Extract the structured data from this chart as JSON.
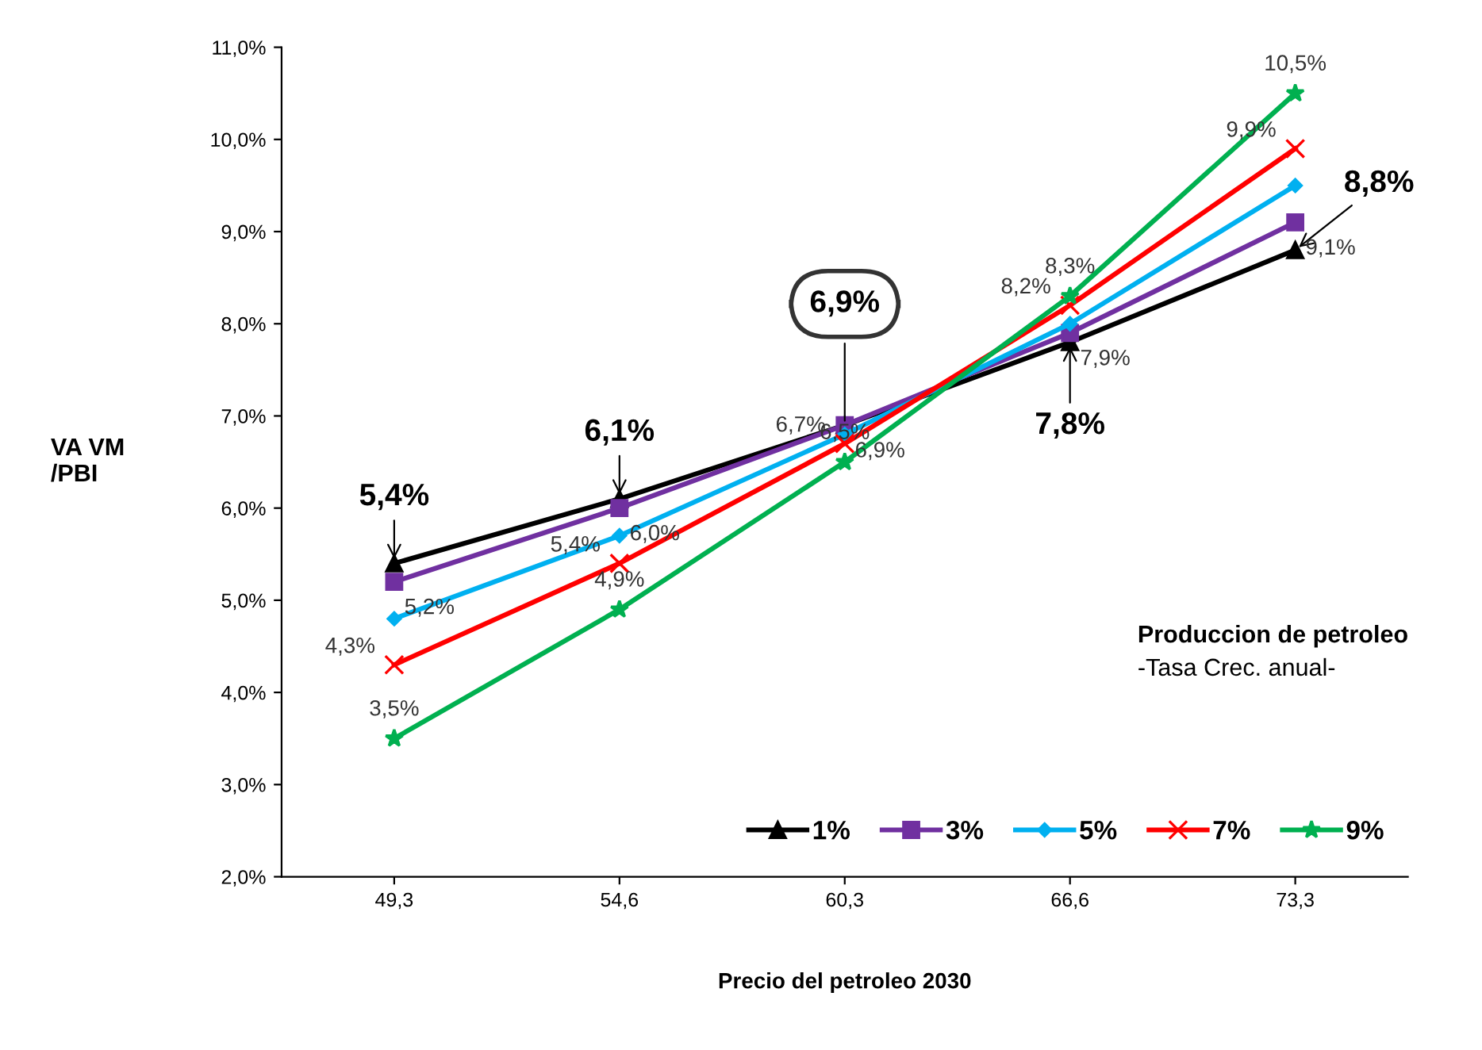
{
  "chart_data": {
    "type": "line",
    "xlabel": "Precio del petroleo 2030",
    "ylabel": "VA VM\n/PBI",
    "categories": [
      "49,3",
      "54,6",
      "60,3",
      "66,6",
      "73,3"
    ],
    "ylim": [
      2.0,
      11.0
    ],
    "yticks": [
      {
        "value": 2.0,
        "label": "2,0%"
      },
      {
        "value": 3.0,
        "label": "3,0%"
      },
      {
        "value": 4.0,
        "label": "4,0%"
      },
      {
        "value": 5.0,
        "label": "5,0%"
      },
      {
        "value": 6.0,
        "label": "6,0%"
      },
      {
        "value": 7.0,
        "label": "7,0%"
      },
      {
        "value": 8.0,
        "label": "8,0%"
      },
      {
        "value": 9.0,
        "label": "9,0%"
      },
      {
        "value": 10.0,
        "label": "10,0%"
      },
      {
        "value": 11.0,
        "label": "11,0%"
      }
    ],
    "grid": false,
    "legend": "bottom right",
    "legend_title": "Produccion de petroleo\n-Tasa Crec. anual-",
    "annotations": [
      {
        "text": "6,9%",
        "x": "60,3",
        "y": 6.9
      }
    ],
    "series": [
      {
        "name": "1%",
        "color": "#000000",
        "marker": "triangle",
        "values": [
          5.4,
          6.1,
          6.9,
          7.8,
          8.8
        ],
        "value_labels": [
          "5,4%",
          "6,1%",
          null,
          "7,8%",
          "8,8%"
        ]
      },
      {
        "name": "3%",
        "color": "#7030a0",
        "marker": "square",
        "values": [
          5.2,
          6.0,
          6.9,
          7.9,
          9.1
        ],
        "value_labels": [
          "5,2%",
          "6,0%",
          "6,9%",
          "7,9%",
          "9,1%"
        ]
      },
      {
        "name": "5%",
        "color": "#00b0f0",
        "marker": "diamond",
        "values": [
          4.8,
          5.7,
          6.8,
          8.0,
          9.5
        ]
      },
      {
        "name": "7%",
        "color": "#ff0000",
        "marker": "cross",
        "values": [
          4.3,
          5.4,
          6.7,
          8.2,
          9.9
        ],
        "value_labels": [
          "4,3%",
          "5,4%",
          "6,7%",
          "8,2%",
          "9,9%"
        ]
      },
      {
        "name": "9%",
        "color": "#00b050",
        "marker": "star",
        "values": [
          3.5,
          4.9,
          6.5,
          8.3,
          10.5
        ],
        "value_labels": [
          "3,5%",
          "4,9%",
          "6,5%",
          "8,3%",
          "10,5%"
        ]
      }
    ]
  }
}
